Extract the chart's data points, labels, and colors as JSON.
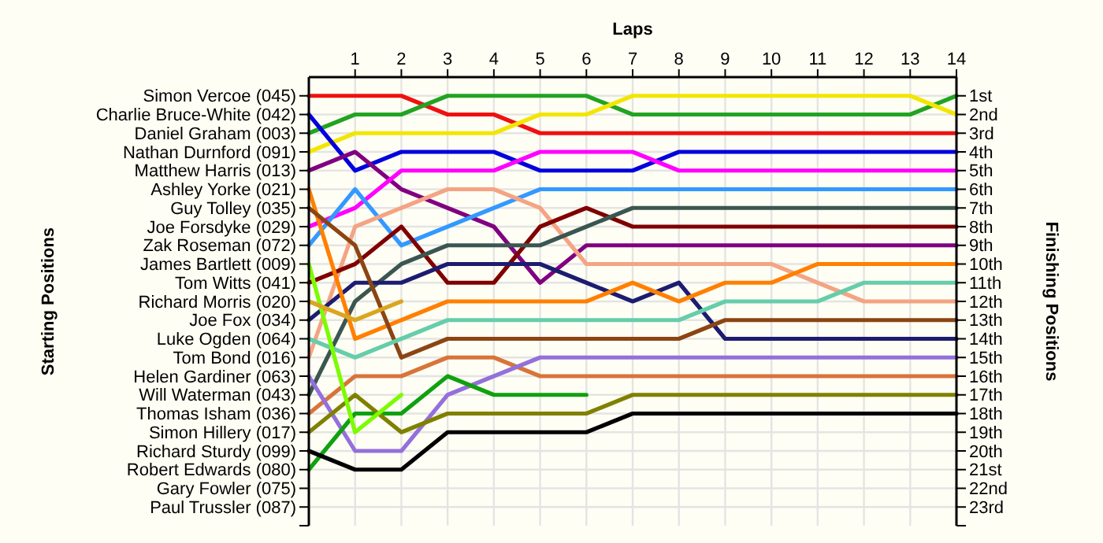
{
  "chart_data": {
    "type": "line",
    "xlabel": "Laps",
    "annotations": [
      "Starting Positions"
    ],
    "y2label": "Finishing Positions",
    "grid": true,
    "marker": "none",
    "x": [
      0,
      1,
      2,
      3,
      4,
      5,
      6,
      7,
      8,
      9,
      10,
      11,
      12,
      13,
      14
    ],
    "xlim": [
      0,
      14
    ],
    "xticks": [
      1,
      2,
      3,
      4,
      5,
      6,
      7,
      8,
      9,
      10,
      11,
      12,
      13,
      14
    ],
    "y_categories": [
      "Simon Vercoe (045)",
      "Charlie Bruce-White (042)",
      "Daniel Graham (003)",
      "Nathan Durnford (091)",
      "Matthew Harris (013)",
      "Ashley Yorke (021)",
      "Guy Tolley (035)",
      "Joe Forsdyke (029)",
      "Zak Roseman (072)",
      "James Bartlett (009)",
      "Tom Witts (041)",
      "Richard Morris (020)",
      "Joe Fox (034)",
      "Luke Ogden (064)",
      "Tom Bond (016)",
      "Helen Gardiner (063)",
      "Will Waterman (043)",
      "Thomas Isham (036)",
      "Simon Hillery (017)",
      "Richard Sturdy (099)",
      "Robert Edwards (080)",
      "Gary Fowler (075)",
      "Paul Trussler (087)"
    ],
    "y2lim": [
      24,
      0
    ],
    "y2ticks": [
      {
        "value": 1,
        "label": "1st"
      },
      {
        "value": 2,
        "label": "2nd"
      },
      {
        "value": 3,
        "label": "3rd"
      },
      {
        "value": 4,
        "label": "4th"
      },
      {
        "value": 5,
        "label": "5th"
      },
      {
        "value": 6,
        "label": "6th"
      },
      {
        "value": 7,
        "label": "7th"
      },
      {
        "value": 8,
        "label": "8th"
      },
      {
        "value": 9,
        "label": "9th"
      },
      {
        "value": 10,
        "label": "10th"
      },
      {
        "value": 11,
        "label": "11th"
      },
      {
        "value": 12,
        "label": "12th"
      },
      {
        "value": 13,
        "label": "13th"
      },
      {
        "value": 14,
        "label": "14th"
      },
      {
        "value": 15,
        "label": "15th"
      },
      {
        "value": 16,
        "label": "16th"
      },
      {
        "value": 17,
        "label": "17th"
      },
      {
        "value": 18,
        "label": "18th"
      },
      {
        "value": 19,
        "label": "19th"
      },
      {
        "value": 20,
        "label": "20th"
      },
      {
        "value": 21,
        "label": "21st"
      },
      {
        "value": 22,
        "label": "22nd"
      },
      {
        "value": 23,
        "label": "23rd"
      }
    ],
    "series": [
      {
        "axis": "y2",
        "color": "#ee1111",
        "values": [
          1,
          1,
          1,
          2,
          2,
          3,
          3,
          3,
          3,
          3,
          3,
          3,
          3,
          3,
          3
        ]
      },
      {
        "axis": "y2",
        "color": "#22a322",
        "values": [
          3,
          2,
          2,
          1,
          1,
          1,
          1,
          2,
          2,
          2,
          2,
          2,
          2,
          2,
          1
        ]
      },
      {
        "axis": "y2",
        "color": "#f2e600",
        "values": [
          4,
          3,
          3,
          3,
          3,
          2,
          2,
          1,
          1,
          1,
          1,
          1,
          1,
          1,
          2
        ]
      },
      {
        "axis": "y2",
        "color": "#0000dd",
        "values": [
          2,
          5,
          4,
          4,
          4,
          5,
          5,
          5,
          4,
          4,
          4,
          4,
          4,
          4,
          4
        ]
      },
      {
        "axis": "y2",
        "color": "#800080",
        "values": [
          5,
          4,
          6,
          7,
          8,
          11,
          9,
          9,
          9,
          9,
          9,
          9,
          9,
          9,
          9
        ]
      },
      {
        "axis": "y2",
        "color": "#ff00ff",
        "values": [
          8,
          7,
          5,
          5,
          5,
          4,
          4,
          4,
          5,
          5,
          5,
          5,
          5,
          5,
          5
        ]
      },
      {
        "axis": "y2",
        "color": "#3399ff",
        "values": [
          9,
          6,
          9,
          8,
          7,
          6,
          6,
          6,
          6,
          6,
          6,
          6,
          6,
          6,
          6
        ]
      },
      {
        "axis": "y2",
        "color": "#f4a484",
        "values": [
          15,
          8,
          7,
          6,
          6,
          7,
          10,
          10,
          10,
          10,
          10,
          11,
          12,
          12,
          12
        ]
      },
      {
        "axis": "y2",
        "color": "#800000",
        "values": [
          11,
          10,
          8,
          11,
          11,
          8,
          7,
          8,
          8,
          8,
          8,
          8,
          8,
          8,
          8
        ]
      },
      {
        "axis": "y2",
        "color": "#3b5650",
        "values": [
          17,
          12,
          10,
          9,
          9,
          9,
          8,
          7,
          7,
          7,
          7,
          7,
          7,
          7,
          7
        ]
      },
      {
        "axis": "y2",
        "color": "#1c1c70",
        "values": [
          13,
          11,
          11,
          10,
          10,
          10,
          11,
          12,
          11,
          14,
          14,
          14,
          14,
          14,
          14
        ]
      },
      {
        "axis": "y2",
        "color": "#ff8000",
        "values": [
          6,
          14,
          13,
          12,
          12,
          12,
          12,
          11,
          12,
          11,
          11,
          10,
          10,
          10,
          10
        ]
      },
      {
        "axis": "y2",
        "color": "#8b4513",
        "values": [
          7,
          9,
          15,
          14,
          14,
          14,
          14,
          14,
          14,
          13,
          13,
          13,
          13,
          13,
          13
        ]
      },
      {
        "axis": "y2",
        "color": "#66cdaa",
        "values": [
          14,
          15,
          14,
          13,
          13,
          13,
          13,
          13,
          13,
          12,
          12,
          12,
          11,
          11,
          11
        ]
      },
      {
        "axis": "y2",
        "color": "#d8743a",
        "values": [
          18,
          16,
          16,
          15,
          15,
          16,
          16,
          16,
          16,
          16,
          16,
          16,
          16,
          16,
          16
        ]
      },
      {
        "axis": "y2",
        "color": "#9370db",
        "values": [
          16,
          20,
          20,
          17,
          16,
          15,
          15,
          15,
          15,
          15,
          15,
          15,
          15,
          15,
          15
        ]
      },
      {
        "axis": "y2",
        "color": "#10a010",
        "values": [
          21,
          18,
          18,
          16,
          17,
          17,
          17,
          null,
          null,
          null,
          null,
          null,
          null,
          null,
          null
        ]
      },
      {
        "axis": "y2",
        "color": "#808000",
        "values": [
          19,
          17,
          19,
          18,
          18,
          18,
          18,
          17,
          17,
          17,
          17,
          17,
          17,
          17,
          17
        ]
      },
      {
        "axis": "y2",
        "color": "#000000",
        "values": [
          20,
          21,
          21,
          19,
          19,
          19,
          19,
          18,
          18,
          18,
          18,
          18,
          18,
          18,
          18
        ]
      },
      {
        "axis": "y2",
        "color": "#7cfc00",
        "values": [
          10,
          19,
          17,
          null,
          null,
          null,
          null,
          null,
          null,
          null,
          null,
          null,
          null,
          null,
          null
        ]
      },
      {
        "axis": "y2",
        "color": "#daa520",
        "values": [
          12,
          13,
          12,
          null,
          null,
          null,
          null,
          null,
          null,
          null,
          null,
          null,
          null,
          null,
          null
        ]
      }
    ]
  }
}
